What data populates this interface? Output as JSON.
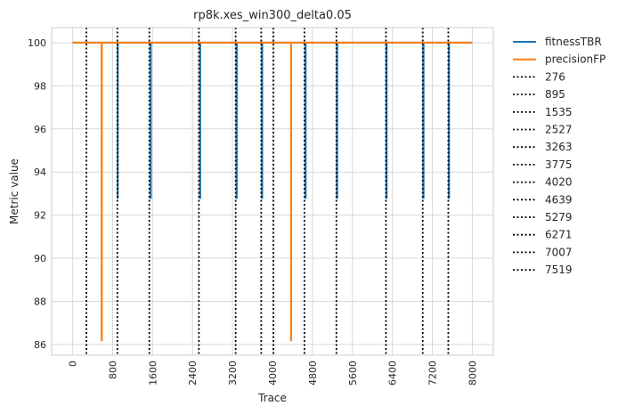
{
  "chart_data": {
    "type": "line",
    "title": "rp8k.xes_win300_delta0.05",
    "xlabel": "Trace",
    "ylabel": "Metric value",
    "xlim": [
      -420,
      8420
    ],
    "ylim": [
      85.5,
      100.7
    ],
    "xticks": [
      0,
      800,
      1600,
      2400,
      3200,
      4000,
      4800,
      5600,
      6400,
      7200,
      8000
    ],
    "xtick_labels": [
      "0",
      "800",
      "1600",
      "2400",
      "3200",
      "4000",
      "4800",
      "5600",
      "6400",
      "7200",
      "8000"
    ],
    "yticks": [
      86,
      88,
      90,
      92,
      94,
      96,
      98,
      100
    ],
    "ytick_labels": [
      "86",
      "88",
      "90",
      "92",
      "94",
      "96",
      "98",
      "100"
    ],
    "grid": true,
    "legend_placement": "outside-right",
    "series": [
      {
        "name": "fitnessTBR",
        "color": "#1f77b4",
        "x": [
          0,
          900,
          900,
          905,
          905,
          1560,
          1560,
          1565,
          1565,
          2550,
          2550,
          2555,
          2555,
          3280,
          3280,
          3285,
          3285,
          3790,
          3790,
          3795,
          3795,
          4660,
          4660,
          4665,
          4665,
          5290,
          5290,
          5295,
          5295,
          6280,
          6280,
          6285,
          6285,
          7020,
          7020,
          7025,
          7025,
          7530,
          7530,
          7535,
          7535,
          8000
        ],
        "y": [
          100,
          100,
          92.8,
          92.8,
          100,
          100,
          92.8,
          92.8,
          100,
          100,
          92.8,
          92.8,
          100,
          100,
          92.8,
          92.8,
          100,
          100,
          92.8,
          92.8,
          100,
          100,
          92.8,
          92.8,
          100,
          100,
          92.8,
          92.8,
          100,
          100,
          92.8,
          92.8,
          100,
          100,
          92.8,
          92.8,
          100,
          100,
          92.8,
          92.8,
          100,
          100
        ]
      },
      {
        "name": "precisionFP",
        "color": "#ff7f0e",
        "x": [
          0,
          580,
          580,
          585,
          585,
          4370,
          4370,
          4375,
          4375,
          8000
        ],
        "y": [
          100,
          100,
          86.2,
          86.2,
          100,
          100,
          86.2,
          86.2,
          100,
          100
        ]
      }
    ],
    "drift_lines": {
      "color": "#000000",
      "style": "dotted",
      "values": [
        276,
        895,
        1535,
        2527,
        3263,
        3775,
        4020,
        4639,
        5279,
        6271,
        7007,
        7519
      ],
      "labels": [
        "276",
        "895",
        "1535",
        "2527",
        "3263",
        "3775",
        "4020",
        "4639",
        "5279",
        "6271",
        "7007",
        "7519"
      ]
    }
  }
}
